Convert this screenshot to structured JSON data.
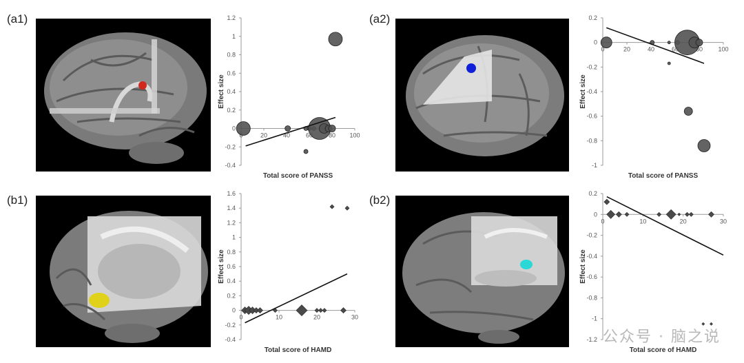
{
  "panels": {
    "a1": "(a1)",
    "a2": "(a2)",
    "b1": "(b1)",
    "b2": "(b2)"
  },
  "watermark": "公众号 · 脑之说",
  "highlight_colors": {
    "a1": "#d0281c",
    "a2": "#1020d8",
    "b1": "#e0d21a",
    "b2": "#2ad8d8"
  },
  "chart_data": [
    {
      "id": "a1",
      "type": "scatter",
      "marker": "circle",
      "xlabel": "Total score of PANSS",
      "ylabel": "Effect size",
      "xlim": [
        0,
        100
      ],
      "ylim": [
        -0.4,
        1.2
      ],
      "xticks": [
        0,
        20,
        40,
        60,
        80,
        100
      ],
      "yticks": [
        -0.4,
        -0.2,
        0,
        0.2,
        0.4,
        0.6,
        0.8,
        1,
        1.2
      ],
      "xtick_labels": [
        "0",
        "20",
        "40",
        "60",
        "80",
        "100"
      ],
      "ytick_labels": [
        "-0.4",
        "-0.2",
        "0",
        "0.2",
        "0.4",
        "0.6",
        "0.8",
        "1",
        "1.2"
      ],
      "points": [
        {
          "x": 2,
          "y": 0.0,
          "size": 10
        },
        {
          "x": 41,
          "y": 0.0,
          "size": 4
        },
        {
          "x": 57,
          "y": -0.25,
          "size": 3
        },
        {
          "x": 57,
          "y": 0.0,
          "size": 3
        },
        {
          "x": 60,
          "y": 0.0,
          "size": 3
        },
        {
          "x": 64,
          "y": 0.0,
          "size": 3
        },
        {
          "x": 69,
          "y": 0.0,
          "size": 16
        },
        {
          "x": 73,
          "y": 0.0,
          "size": 7
        },
        {
          "x": 77,
          "y": 0.0,
          "size": 5
        },
        {
          "x": 80,
          "y": 0.0,
          "size": 5
        },
        {
          "x": 83,
          "y": 0.97,
          "size": 10
        }
      ],
      "trendline": {
        "x": [
          4,
          83
        ],
        "y": [
          -0.19,
          0.12
        ]
      }
    },
    {
      "id": "a2",
      "type": "scatter",
      "marker": "circle",
      "xlabel": "Total score of PANSS",
      "ylabel": "Effect size",
      "xlim": [
        0,
        100
      ],
      "ylim": [
        -1,
        0.2
      ],
      "xticks": [
        0,
        20,
        40,
        60,
        80,
        100
      ],
      "yticks": [
        -1,
        -0.8,
        -0.6,
        -0.4,
        -0.2,
        0,
        0.2
      ],
      "xtick_labels": [
        "0",
        "20",
        "40",
        "60",
        "80",
        "100"
      ],
      "ytick_labels": [
        "-1",
        "-0.8",
        "-0.6",
        "-0.4",
        "-0.2",
        "0",
        "0.2"
      ],
      "points": [
        {
          "x": 3,
          "y": 0.0,
          "size": 8
        },
        {
          "x": 41,
          "y": 0.0,
          "size": 3
        },
        {
          "x": 55,
          "y": -0.17,
          "size": 2
        },
        {
          "x": 55,
          "y": 0.0,
          "size": 2
        },
        {
          "x": 62,
          "y": 0.0,
          "size": 3
        },
        {
          "x": 70,
          "y": 0.0,
          "size": 18
        },
        {
          "x": 76,
          "y": 0.0,
          "size": 8
        },
        {
          "x": 80,
          "y": 0.0,
          "size": 5
        },
        {
          "x": 71,
          "y": -0.56,
          "size": 6
        },
        {
          "x": 84,
          "y": -0.84,
          "size": 9
        }
      ],
      "trendline": {
        "x": [
          3,
          84
        ],
        "y": [
          0.12,
          -0.17
        ]
      }
    },
    {
      "id": "b1",
      "type": "scatter",
      "marker": "diamond",
      "xlabel": "Total score of HAMD",
      "ylabel": "Effect size",
      "xlim": [
        0,
        30
      ],
      "ylim": [
        -0.4,
        1.6
      ],
      "xticks": [
        0,
        10,
        20,
        30
      ],
      "yticks": [
        -0.4,
        -0.2,
        0,
        0.2,
        0.4,
        0.6,
        0.8,
        1,
        1.2,
        1.4,
        1.6
      ],
      "xtick_labels": [
        "0",
        "10",
        "20",
        "30"
      ],
      "ytick_labels": [
        "-0.4",
        "-0.2",
        "0",
        "0.2",
        "0.4",
        "0.6",
        "0.8",
        "1",
        "1.2",
        "1.4",
        "1.6"
      ],
      "points": [
        {
          "x": 1,
          "y": 0.0,
          "size": 5
        },
        {
          "x": 2,
          "y": 0.0,
          "size": 6
        },
        {
          "x": 3,
          "y": 0.0,
          "size": 5
        },
        {
          "x": 4,
          "y": 0.0,
          "size": 4
        },
        {
          "x": 5,
          "y": 0.0,
          "size": 4
        },
        {
          "x": 9,
          "y": 0.0,
          "size": 3
        },
        {
          "x": 16,
          "y": 0.0,
          "size": 8
        },
        {
          "x": 20,
          "y": 0.0,
          "size": 3
        },
        {
          "x": 21,
          "y": 0.0,
          "size": 3
        },
        {
          "x": 22,
          "y": 0.0,
          "size": 3
        },
        {
          "x": 27,
          "y": 0.0,
          "size": 4
        },
        {
          "x": 24,
          "y": 1.42,
          "size": 3
        },
        {
          "x": 28,
          "y": 1.4,
          "size": 3
        }
      ],
      "trendline": {
        "x": [
          1,
          28
        ],
        "y": [
          -0.17,
          0.5
        ]
      }
    },
    {
      "id": "b2",
      "type": "scatter",
      "marker": "diamond",
      "xlabel": "Total score of HAMD",
      "ylabel": "Effect size",
      "xlim": [
        0,
        30
      ],
      "ylim": [
        -1.2,
        0.2
      ],
      "xticks": [
        0,
        10,
        20,
        30
      ],
      "yticks": [
        -1.2,
        -1,
        -0.8,
        -0.6,
        -0.4,
        -0.2,
        0,
        0.2
      ],
      "xtick_labels": [
        "0",
        "10",
        "20",
        "30"
      ],
      "ytick_labels": [
        "-1.2",
        "-1",
        "-0.8",
        "-0.6",
        "-0.4",
        "-0.2",
        "0",
        "0.2"
      ],
      "points": [
        {
          "x": 1,
          "y": 0.12,
          "size": 4
        },
        {
          "x": 2,
          "y": 0.0,
          "size": 6
        },
        {
          "x": 4,
          "y": 0.0,
          "size": 4
        },
        {
          "x": 6,
          "y": 0.0,
          "size": 3
        },
        {
          "x": 14,
          "y": 0.0,
          "size": 3
        },
        {
          "x": 17,
          "y": 0.0,
          "size": 7
        },
        {
          "x": 19,
          "y": 0.0,
          "size": 2
        },
        {
          "x": 21,
          "y": 0.0,
          "size": 3
        },
        {
          "x": 22,
          "y": 0.0,
          "size": 3
        },
        {
          "x": 27,
          "y": 0.0,
          "size": 4
        },
        {
          "x": 25,
          "y": -1.05,
          "size": 2
        },
        {
          "x": 27,
          "y": -1.05,
          "size": 2
        }
      ],
      "trendline": {
        "x": [
          1,
          30
        ],
        "y": [
          0.17,
          -0.39
        ]
      }
    }
  ]
}
